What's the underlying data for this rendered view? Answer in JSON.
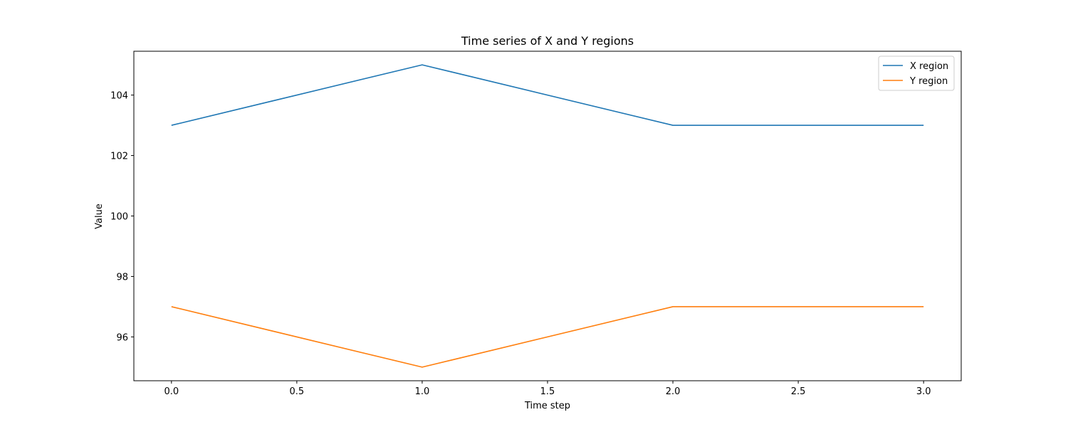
{
  "chart_data": {
    "type": "line",
    "title": "Time series of X and Y regions",
    "xlabel": "Time step",
    "ylabel": "Value",
    "x": [
      0,
      1,
      2,
      3
    ],
    "xlim": [
      -0.15,
      3.15
    ],
    "ylim": [
      94.55,
      105.45
    ],
    "xticks": [
      0.0,
      0.5,
      1.0,
      1.5,
      2.0,
      2.5,
      3.0
    ],
    "xtick_labels": [
      "0.0",
      "0.5",
      "1.0",
      "1.5",
      "2.0",
      "2.5",
      "3.0"
    ],
    "yticks": [
      96,
      98,
      100,
      102,
      104
    ],
    "ytick_labels": [
      "96",
      "98",
      "100",
      "102",
      "104"
    ],
    "grid": false,
    "legend_position": "top-right",
    "series": [
      {
        "name": "X region",
        "values": [
          103,
          105,
          103,
          103
        ],
        "color": "#1f77b4"
      },
      {
        "name": "Y region",
        "values": [
          97,
          95,
          97,
          97
        ],
        "color": "#ff7f0e"
      }
    ]
  }
}
